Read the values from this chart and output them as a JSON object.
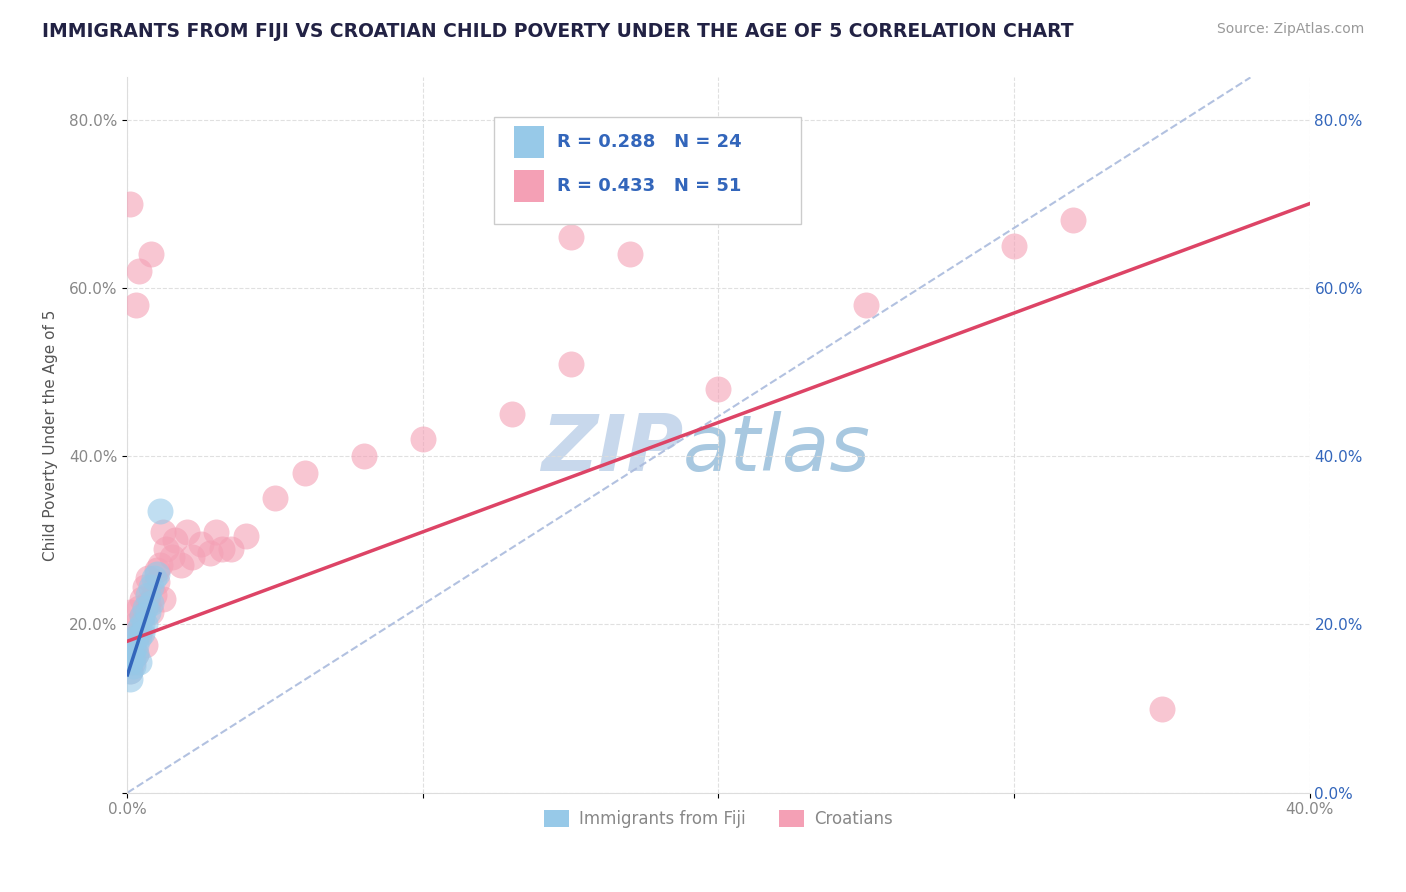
{
  "title": "IMMIGRANTS FROM FIJI VS CROATIAN CHILD POVERTY UNDER THE AGE OF 5 CORRELATION CHART",
  "source": "Source: ZipAtlas.com",
  "ylabel": "Child Poverty Under the Age of 5",
  "xlim": [
    0.0,
    0.4
  ],
  "ylim": [
    0.0,
    0.85
  ],
  "xticks": [
    0.0,
    0.1,
    0.2,
    0.3,
    0.4
  ],
  "yticks": [
    0.0,
    0.2,
    0.4,
    0.6,
    0.8
  ],
  "xticklabels": [
    "0.0%",
    "",
    "",
    "",
    "40.0%"
  ],
  "yticklabels": [
    "",
    "20.0%",
    "40.0%",
    "60.0%",
    "80.0%"
  ],
  "right_yticklabels": [
    "0.0%",
    "20.0%",
    "40.0%",
    "60.0%",
    "80.0%"
  ],
  "legend_labels": [
    "Immigrants from Fiji",
    "Croatians"
  ],
  "fiji_R": 0.288,
  "fiji_N": 24,
  "croatian_R": 0.433,
  "croatian_N": 51,
  "fiji_color": "#97C9E8",
  "croatian_color": "#F4A0B5",
  "fiji_line_color": "#3366BB",
  "croatian_line_color": "#DD4466",
  "diag_color": "#AABBDD",
  "watermark_zip": "ZIP",
  "watermark_atlas": "atlas",
  "watermark_color_zip": "#C8D8EC",
  "watermark_color_atlas": "#A8C8E0",
  "background_color": "#FFFFFF",
  "grid_color": "#DDDDDD",
  "title_color": "#222244",
  "axis_label_color": "#555555",
  "tick_color": "#888888",
  "legend_text_color": "#3366BB",
  "fiji_scatter_x": [
    0.001,
    0.001,
    0.001,
    0.002,
    0.002,
    0.002,
    0.003,
    0.003,
    0.003,
    0.004,
    0.004,
    0.004,
    0.005,
    0.005,
    0.005,
    0.006,
    0.006,
    0.007,
    0.007,
    0.008,
    0.008,
    0.009,
    0.01,
    0.011
  ],
  "fiji_scatter_y": [
    0.155,
    0.145,
    0.135,
    0.17,
    0.16,
    0.15,
    0.185,
    0.175,
    0.165,
    0.195,
    0.185,
    0.155,
    0.21,
    0.2,
    0.19,
    0.22,
    0.2,
    0.235,
    0.215,
    0.245,
    0.225,
    0.255,
    0.26,
    0.335
  ],
  "croatian_scatter_x": [
    0.001,
    0.001,
    0.001,
    0.002,
    0.002,
    0.003,
    0.003,
    0.004,
    0.004,
    0.005,
    0.005,
    0.006,
    0.006,
    0.007,
    0.007,
    0.008,
    0.009,
    0.01,
    0.011,
    0.012,
    0.013,
    0.015,
    0.016,
    0.018,
    0.02,
    0.022,
    0.025,
    0.028,
    0.03,
    0.032,
    0.035,
    0.04,
    0.05,
    0.06,
    0.08,
    0.1,
    0.13,
    0.15,
    0.2,
    0.25,
    0.3,
    0.003,
    0.004,
    0.008,
    0.01,
    0.012,
    0.15,
    0.17,
    0.32,
    0.35,
    0.001
  ],
  "croatian_scatter_y": [
    0.145,
    0.185,
    0.215,
    0.155,
    0.175,
    0.165,
    0.2,
    0.19,
    0.22,
    0.21,
    0.23,
    0.175,
    0.245,
    0.225,
    0.255,
    0.215,
    0.235,
    0.265,
    0.27,
    0.23,
    0.29,
    0.28,
    0.3,
    0.27,
    0.31,
    0.28,
    0.295,
    0.285,
    0.31,
    0.29,
    0.29,
    0.305,
    0.35,
    0.38,
    0.4,
    0.42,
    0.45,
    0.51,
    0.48,
    0.58,
    0.65,
    0.58,
    0.62,
    0.64,
    0.25,
    0.31,
    0.66,
    0.64,
    0.68,
    0.1,
    0.7
  ]
}
